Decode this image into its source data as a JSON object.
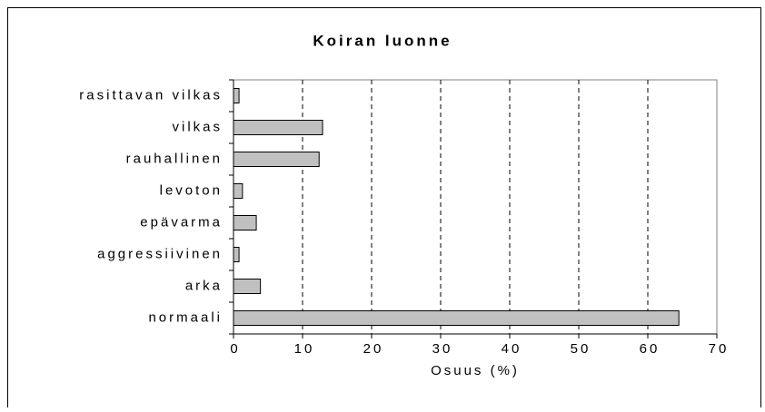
{
  "chart_data": {
    "type": "bar",
    "orientation": "horizontal",
    "title": "Koiran luonne",
    "x_label": "Osuus (%)",
    "categories": [
      "rasittavan vilkas",
      "vilkas",
      "rauhallinen",
      "levoton",
      "epävarma",
      "aggressiivinen",
      "arka",
      "normaali"
    ],
    "values": [
      0.8,
      12.9,
      12.4,
      1.3,
      3.3,
      0.8,
      3.9,
      64.5
    ],
    "color": "#c0c0c0",
    "xlim": [
      0,
      70
    ],
    "xticks": [
      0,
      10,
      20,
      30,
      40,
      50,
      60,
      70
    ],
    "grid": true
  }
}
